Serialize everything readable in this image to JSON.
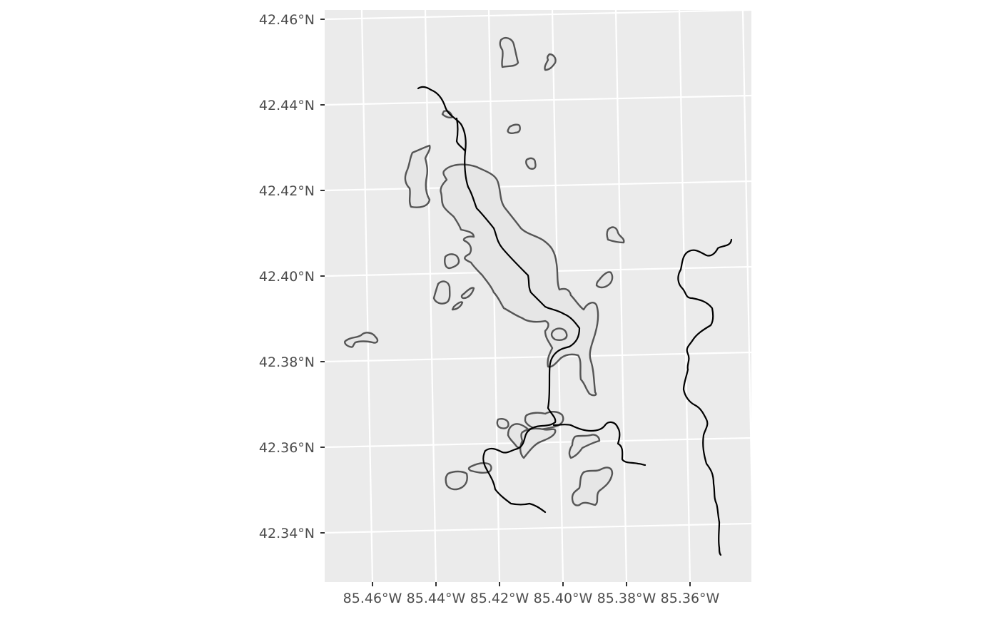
{
  "map": {
    "panel_background": "#ebebeb",
    "lake_fill": "#e6e6e6",
    "lake_outline": "#555555",
    "river_color": "#000000",
    "latitude_labels": [
      "42.46°N",
      "42.44°N",
      "42.42°N",
      "42.40°N",
      "42.38°N",
      "42.36°N",
      "42.34°N"
    ],
    "longitude_labels": [
      "85.46°W",
      "85.44°W",
      "85.42°W",
      "85.40°W",
      "85.38°W",
      "85.36°W"
    ]
  }
}
